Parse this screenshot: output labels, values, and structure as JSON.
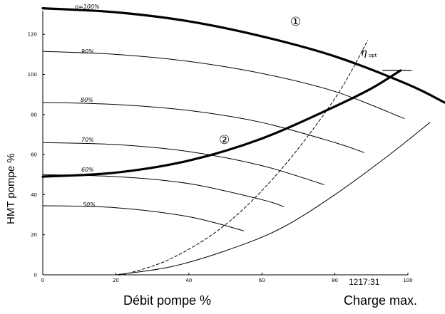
{
  "chart_data": {
    "type": "line",
    "xlabel": "Débit pompe %",
    "ylabel": "HMT pompe %",
    "xlim": [
      0,
      100
    ],
    "ylim": [
      0,
      130
    ],
    "x_ticks": [
      "0",
      "20",
      "40",
      "60",
      "80",
      "100"
    ],
    "y_ticks": [
      "0",
      "20",
      "40",
      "60",
      "80",
      "100",
      "120"
    ],
    "corner_label": "Charge max.",
    "figure_code": "1217:31",
    "efficiency_label": "η",
    "efficiency_sub": "opt",
    "curve_markers": [
      "①",
      "②"
    ],
    "speed_labels": [
      "n=100%",
      "90%",
      "80%",
      "70%",
      "60%",
      "50%"
    ],
    "pump_curves": [
      {
        "name": "n=100%",
        "x": [
          0,
          20,
          40,
          60,
          80,
          100,
          110
        ],
        "y": [
          133,
          131,
          126.5,
          119,
          109,
          95,
          86
        ]
      },
      {
        "name": "90%",
        "x": [
          0,
          20,
          40,
          60,
          80,
          99
        ],
        "y": [
          111.5,
          110,
          106.5,
          100.5,
          91.5,
          78
        ]
      },
      {
        "name": "80%",
        "x": [
          0,
          20,
          40,
          60,
          80,
          88
        ],
        "y": [
          86,
          85,
          82,
          76,
          66,
          61
        ]
      },
      {
        "name": "70%",
        "x": [
          0,
          20,
          40,
          60,
          77
        ],
        "y": [
          66,
          65,
          61.5,
          54.5,
          45
        ]
      },
      {
        "name": "60%",
        "x": [
          0,
          20,
          40,
          60,
          66
        ],
        "y": [
          50,
          49,
          45.5,
          37.5,
          34
        ]
      },
      {
        "name": "50%",
        "x": [
          0,
          20,
          40,
          55
        ],
        "y": [
          34.5,
          33.5,
          29,
          22
        ]
      }
    ],
    "system_curve": {
      "x": [
        0,
        20,
        40,
        60,
        80,
        90,
        98
      ],
      "y": [
        49,
        51,
        57,
        68,
        84,
        93,
        102
      ]
    },
    "limit_curve": {
      "x": [
        20,
        35,
        50,
        65,
        80,
        95,
        106
      ],
      "y": [
        0,
        4,
        12,
        23,
        40,
        60,
        76
      ]
    },
    "efficiency_curve": {
      "x": [
        22,
        35,
        50,
        65,
        80,
        89
      ],
      "y": [
        0,
        8,
        25,
        52,
        88,
        117
      ]
    },
    "ref_line_y": 102
  }
}
